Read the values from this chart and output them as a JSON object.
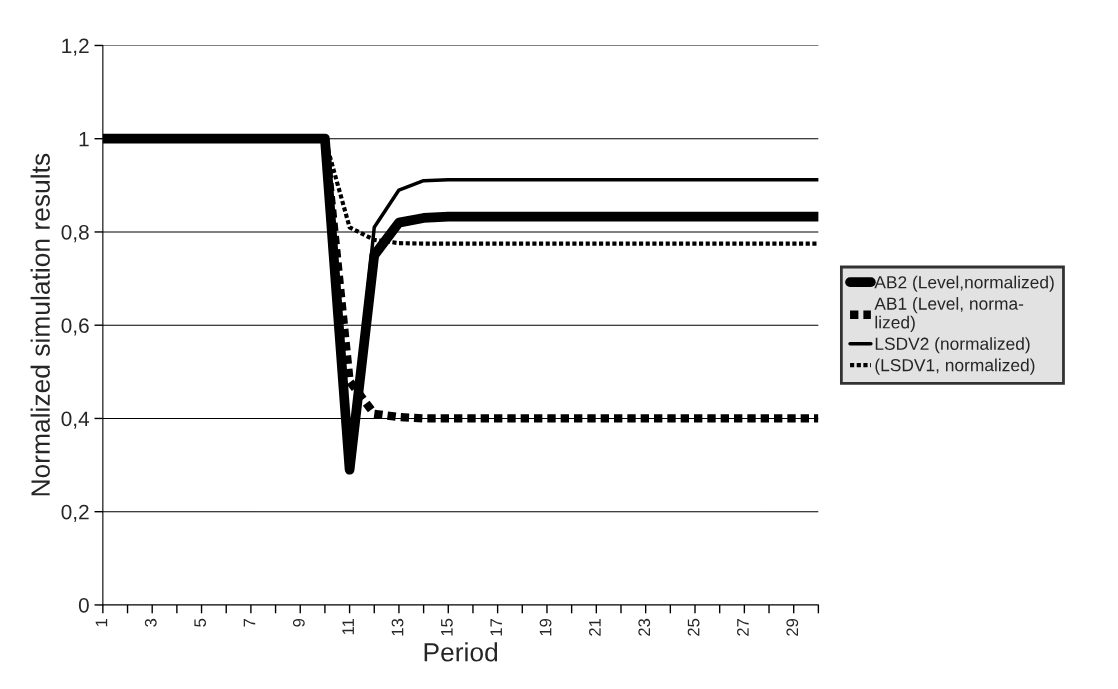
{
  "chart_data": {
    "type": "line",
    "xlabel": "Period",
    "ylabel": "Normalized simulation results",
    "categories": [
      "1",
      null,
      "3",
      null,
      "5",
      null,
      "7",
      null,
      "9",
      null,
      "11",
      null,
      "13",
      null,
      "15",
      null,
      "17",
      null,
      "19",
      null,
      "21",
      null,
      "23",
      null,
      "25",
      null,
      "27",
      null,
      "29",
      null
    ],
    "ylim": [
      0,
      1.2
    ],
    "yticks": [
      {
        "value": 0,
        "label": "0"
      },
      {
        "value": 0.2,
        "label": "0,2"
      },
      {
        "value": 0.4,
        "label": "0,4"
      },
      {
        "value": 0.6,
        "label": "0,6"
      },
      {
        "value": 0.8,
        "label": "0,8"
      },
      {
        "value": 1,
        "label": "1"
      },
      {
        "value": 1.2,
        "label": "1,2"
      }
    ],
    "grid": "y",
    "legend": "right",
    "marker": "none",
    "series": [
      {
        "name": "AB2 (Level,normalized)",
        "color": "#000000",
        "line_style": "solid",
        "values": [
          1,
          1,
          1,
          1,
          1,
          1,
          1,
          1,
          1,
          1,
          0.29,
          0.75,
          0.82,
          0.83,
          0.833,
          0.833,
          0.833,
          0.833,
          0.833,
          0.833,
          0.833,
          0.833,
          0.833,
          0.833,
          0.833,
          0.833,
          0.833,
          0.833,
          0.833,
          0.833
        ]
      },
      {
        "name": "AB1 (Level, norma-\nlized)",
        "color": "#000000",
        "line_style": "dotted",
        "values": [
          1,
          1,
          1,
          1,
          1,
          1,
          1,
          1,
          1,
          1,
          0.48,
          0.41,
          0.403,
          0.4,
          0.4,
          0.4,
          0.4,
          0.4,
          0.4,
          0.4,
          0.4,
          0.4,
          0.4,
          0.4,
          0.4,
          0.4,
          0.4,
          0.4,
          0.4,
          0.4
        ]
      },
      {
        "name": "LSDV2 (normalized)",
        "color": "#000000",
        "line_style": "solid",
        "values": [
          1,
          1,
          1,
          1,
          1,
          1,
          1,
          1,
          1,
          1,
          0.3,
          0.81,
          0.89,
          0.91,
          0.912,
          0.912,
          0.912,
          0.912,
          0.912,
          0.912,
          0.912,
          0.912,
          0.912,
          0.912,
          0.912,
          0.912,
          0.912,
          0.912,
          0.912,
          0.912
        ]
      },
      {
        "name": "(LSDV1, normalized)",
        "color": "#000000",
        "line_style": "dotted",
        "values": [
          1,
          1,
          1,
          1,
          1,
          1,
          1,
          1,
          1,
          1,
          0.81,
          0.783,
          0.776,
          0.775,
          0.775,
          0.775,
          0.775,
          0.775,
          0.775,
          0.775,
          0.775,
          0.775,
          0.775,
          0.775,
          0.775,
          0.775,
          0.775,
          0.775,
          0.775,
          0.775
        ]
      }
    ]
  }
}
